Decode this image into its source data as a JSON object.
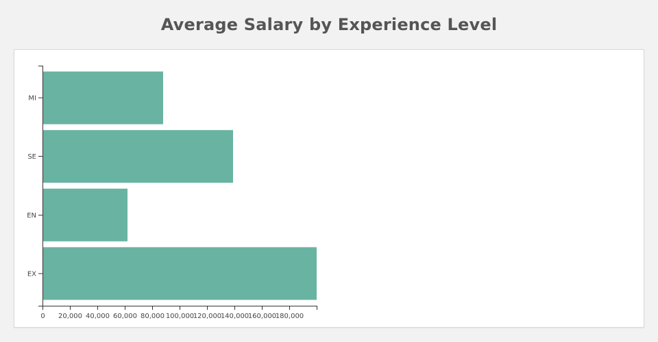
{
  "chart_data": {
    "type": "bar",
    "orientation": "horizontal",
    "title": "Average Salary by Experience Level",
    "xlabel": "",
    "ylabel": "",
    "categories": [
      "MI",
      "SE",
      "EN",
      "EX"
    ],
    "values": [
      88000,
      139000,
      62000,
      200000
    ],
    "xlim": [
      0,
      200000
    ],
    "x_ticks": [
      "0",
      "20,000",
      "40,000",
      "60,000",
      "80,000",
      "100,000",
      "120,000",
      "140,000",
      "160,000",
      "180,000"
    ],
    "x_tick_values": [
      0,
      20000,
      40000,
      60000,
      80000,
      100000,
      120000,
      140000,
      160000,
      180000
    ],
    "bar_color": "#69b3a2",
    "grid": false,
    "legend": "none"
  }
}
